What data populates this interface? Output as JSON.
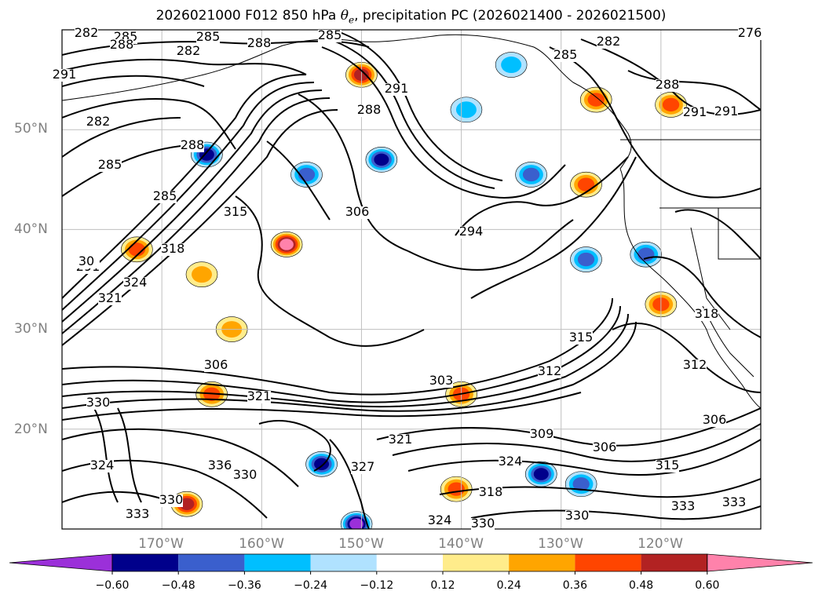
{
  "title": {
    "prefix": "2026021000 F012 850 hPa ",
    "theta_symbol": "θ",
    "theta_subscript": "e",
    "suffix": ", precipitation PC (2026021400 - 2026021500)"
  },
  "map": {
    "lat_labels": [
      "50°N",
      "40°N",
      "30°N",
      "20°N"
    ],
    "lon_labels": [
      "170°W",
      "160°W",
      "150°W",
      "140°W",
      "130°W",
      "120°W"
    ],
    "colors": {
      "contour": "#000000",
      "coastline": "#000000",
      "gridline": "#bfbfbf"
    }
  },
  "contour_labels": [
    "282",
    "285",
    "288",
    "285",
    "282",
    "276",
    "291",
    "288",
    "282",
    "285",
    "291",
    "288",
    "291",
    "285",
    "288",
    "285",
    "291",
    "285",
    "282",
    "288",
    "315",
    "306",
    "294",
    "291",
    "30",
    "321",
    "318",
    "324",
    "306",
    "303",
    "312",
    "315",
    "321",
    "312",
    "309",
    "306",
    "315",
    "318",
    "306",
    "330",
    "327",
    "324",
    "333",
    "336",
    "330",
    "330",
    "321",
    "324",
    "318",
    "324",
    "330",
    "330",
    "333",
    "333"
  ],
  "colorbar": {
    "levels": [
      "−0.60",
      "−0.48",
      "−0.36",
      "−0.24",
      "−0.12",
      "0.12",
      "0.24",
      "0.36",
      "0.48",
      "0.60"
    ],
    "colors": [
      "#9b30d9",
      "#00008b",
      "#3a5fcd",
      "#00bfff",
      "#b0e2ff",
      "#ffffff",
      "#ffec8b",
      "#ffa500",
      "#ff4500",
      "#b22222",
      "#ff82ab"
    ]
  },
  "precip_blobs": [
    {
      "lon": -165.5,
      "lat": 47.5,
      "value": -0.5
    },
    {
      "lon": -148.0,
      "lat": 47.0,
      "value": -0.5
    },
    {
      "lon": -155.5,
      "lat": 45.5,
      "value": -0.4
    },
    {
      "lon": -133.0,
      "lat": 45.5,
      "value": -0.3
    },
    {
      "lon": -157.5,
      "lat": 38.5,
      "value": 0.6
    },
    {
      "lon": -150.0,
      "lat": 55.5,
      "value": 0.45
    },
    {
      "lon": -165.0,
      "lat": 23.5,
      "value": 0.4
    },
    {
      "lon": -140.0,
      "lat": 23.5,
      "value": 0.4
    },
    {
      "lon": -121.5,
      "lat": 37.5,
      "value": -0.4
    },
    {
      "lon": -127.5,
      "lat": 37.0,
      "value": -0.3
    },
    {
      "lon": -132.0,
      "lat": 15.5,
      "value": -0.45
    },
    {
      "lon": -128.0,
      "lat": 14.5,
      "value": -0.35
    },
    {
      "lon": -150.5,
      "lat": 10.5,
      "value": -0.55
    },
    {
      "lon": -154.0,
      "lat": 16.5,
      "value": -0.45
    },
    {
      "lon": -172.5,
      "lat": 38.0,
      "value": 0.3
    },
    {
      "lon": -166.0,
      "lat": 35.5,
      "value": 0.25
    },
    {
      "lon": -120.0,
      "lat": 32.5,
      "value": 0.3
    },
    {
      "lon": -167.5,
      "lat": 12.5,
      "value": 0.45
    },
    {
      "lon": -126.5,
      "lat": 53.0,
      "value": 0.4
    },
    {
      "lon": -119.0,
      "lat": 52.5,
      "value": 0.35
    },
    {
      "lon": -135.0,
      "lat": 56.5,
      "value": -0.25
    },
    {
      "lon": -127.5,
      "lat": 44.5,
      "value": 0.3
    },
    {
      "lon": -139.5,
      "lat": 52.0,
      "value": -0.25
    },
    {
      "lon": -163.0,
      "lat": 30.0,
      "value": 0.25
    },
    {
      "lon": -140.5,
      "lat": 14.0,
      "value": 0.3
    }
  ]
}
